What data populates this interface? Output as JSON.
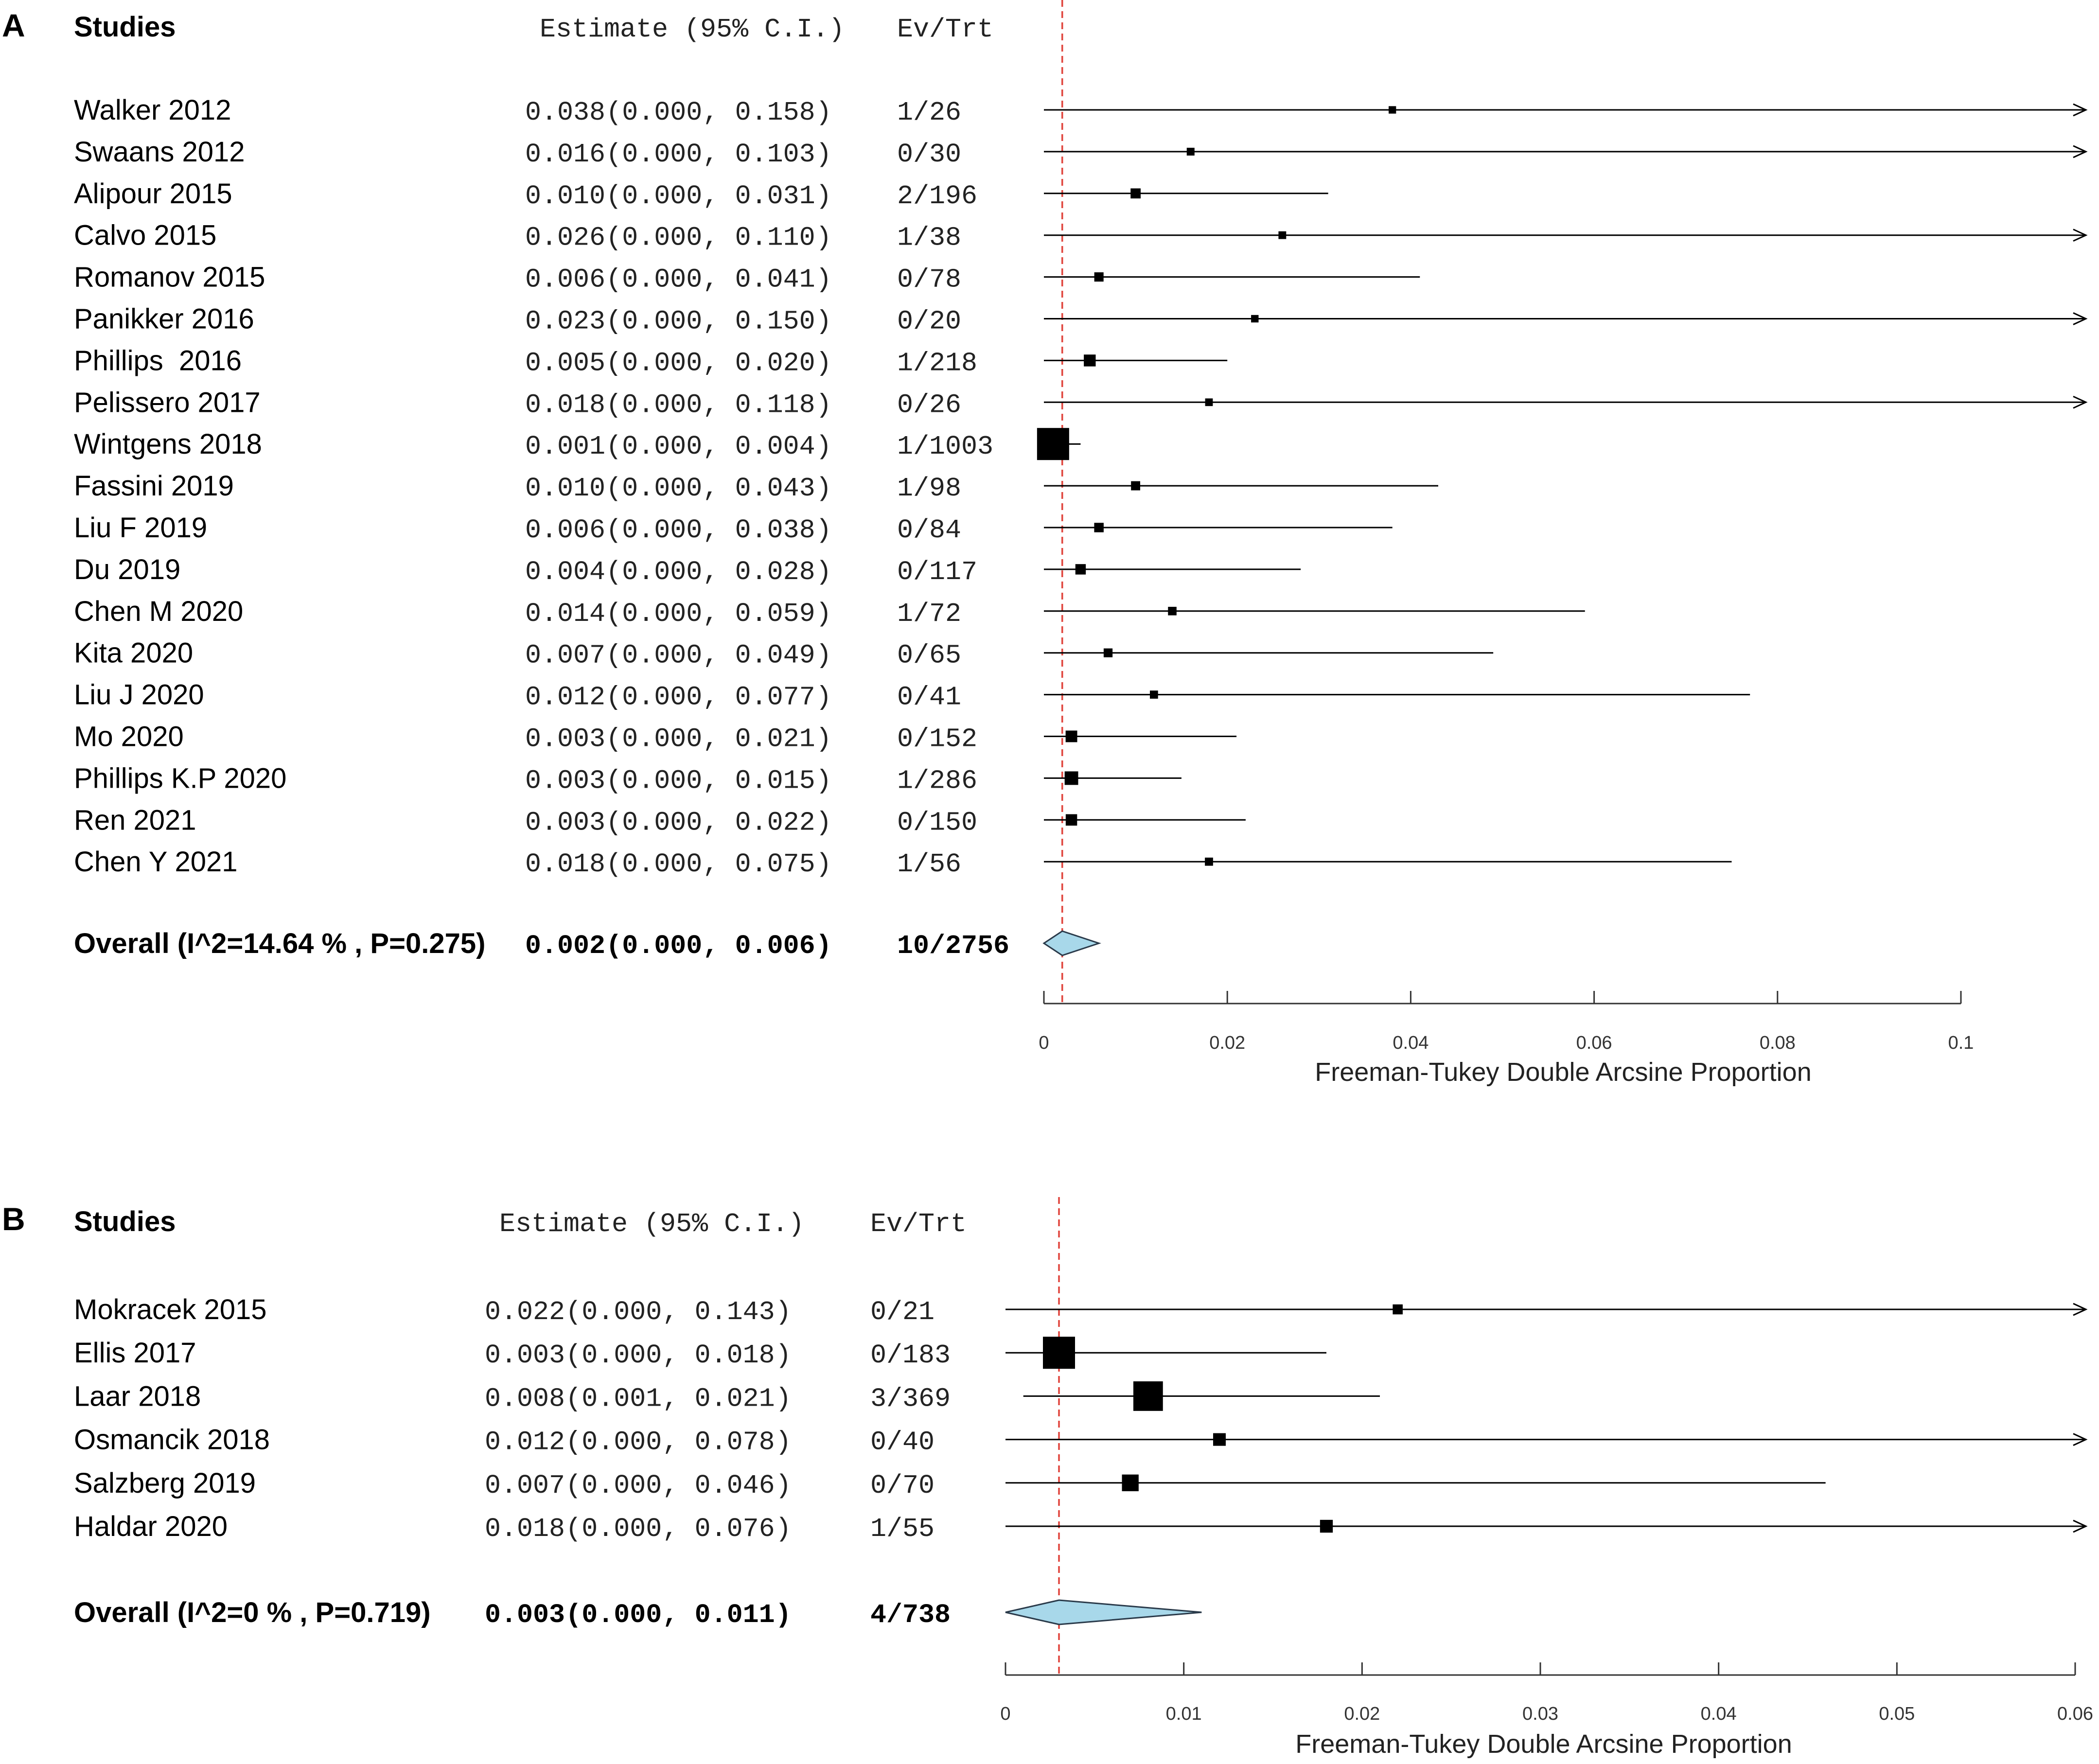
{
  "chart_data": [
    {
      "type": "forest",
      "panel": "A",
      "headers": {
        "studies": "Studies",
        "estimate": "Estimate (95% C.I.)",
        "events": "Ev/Trt"
      },
      "xlabel": "Freeman-Tukey Double Arcsine Proportion",
      "xlim": [
        0,
        0.1
      ],
      "ticks": [
        {
          "value": 0,
          "label": "0"
        },
        {
          "value": 0.02,
          "label": "0.02"
        },
        {
          "value": 0.04,
          "label": "0.04"
        },
        {
          "value": 0.06,
          "label": "0.06"
        },
        {
          "value": 0.08,
          "label": "0.08"
        },
        {
          "value": 0.1,
          "label": "0.1"
        }
      ],
      "reference_line": 0.002,
      "studies": [
        {
          "name": "Walker 2012",
          "est": 0.038,
          "lo": 0.0,
          "hi": 0.158,
          "ev_trt": "1/26",
          "est_text": "0.038",
          "lo_text": "0.000",
          "hi_text": "0.158"
        },
        {
          "name": "Swaans 2012",
          "est": 0.016,
          "lo": 0.0,
          "hi": 0.103,
          "ev_trt": "0/30",
          "est_text": "0.016",
          "lo_text": "0.000",
          "hi_text": "0.103"
        },
        {
          "name": "Alipour 2015",
          "est": 0.01,
          "lo": 0.0,
          "hi": 0.031,
          "ev_trt": "2/196",
          "est_text": "0.010",
          "lo_text": "0.000",
          "hi_text": "0.031"
        },
        {
          "name": "Calvo 2015",
          "est": 0.026,
          "lo": 0.0,
          "hi": 0.11,
          "ev_trt": "1/38",
          "est_text": "0.026",
          "lo_text": "0.000",
          "hi_text": "0.110"
        },
        {
          "name": "Romanov 2015",
          "est": 0.006,
          "lo": 0.0,
          "hi": 0.041,
          "ev_trt": "0/78",
          "est_text": "0.006",
          "lo_text": "0.000",
          "hi_text": "0.041"
        },
        {
          "name": "Panikker 2016",
          "est": 0.023,
          "lo": 0.0,
          "hi": 0.15,
          "ev_trt": "0/20",
          "est_text": "0.023",
          "lo_text": "0.000",
          "hi_text": "0.150"
        },
        {
          "name": "Phillips  2016",
          "est": 0.005,
          "lo": 0.0,
          "hi": 0.02,
          "ev_trt": "1/218",
          "est_text": "0.005",
          "lo_text": "0.000",
          "hi_text": "0.020"
        },
        {
          "name": "Pelissero 2017",
          "est": 0.018,
          "lo": 0.0,
          "hi": 0.118,
          "ev_trt": "0/26",
          "est_text": "0.018",
          "lo_text": "0.000",
          "hi_text": "0.118"
        },
        {
          "name": "Wintgens 2018",
          "est": 0.001,
          "lo": 0.0,
          "hi": 0.004,
          "ev_trt": "1/1003",
          "est_text": "0.001",
          "lo_text": "0.000",
          "hi_text": "0.004"
        },
        {
          "name": "Fassini 2019",
          "est": 0.01,
          "lo": 0.0,
          "hi": 0.043,
          "ev_trt": "1/98",
          "est_text": "0.010",
          "lo_text": "0.000",
          "hi_text": "0.043"
        },
        {
          "name": "Liu F 2019",
          "est": 0.006,
          "lo": 0.0,
          "hi": 0.038,
          "ev_trt": "0/84",
          "est_text": "0.006",
          "lo_text": "0.000",
          "hi_text": "0.038"
        },
        {
          "name": "Du 2019",
          "est": 0.004,
          "lo": 0.0,
          "hi": 0.028,
          "ev_trt": "0/117",
          "est_text": "0.004",
          "lo_text": "0.000",
          "hi_text": "0.028"
        },
        {
          "name": "Chen M 2020",
          "est": 0.014,
          "lo": 0.0,
          "hi": 0.059,
          "ev_trt": "1/72",
          "est_text": "0.014",
          "lo_text": "0.000",
          "hi_text": "0.059"
        },
        {
          "name": "Kita 2020",
          "est": 0.007,
          "lo": 0.0,
          "hi": 0.049,
          "ev_trt": "0/65",
          "est_text": "0.007",
          "lo_text": "0.000",
          "hi_text": "0.049"
        },
        {
          "name": "Liu J 2020",
          "est": 0.012,
          "lo": 0.0,
          "hi": 0.077,
          "ev_trt": "0/41",
          "est_text": "0.012",
          "lo_text": "0.000",
          "hi_text": "0.077"
        },
        {
          "name": "Mo 2020",
          "est": 0.003,
          "lo": 0.0,
          "hi": 0.021,
          "ev_trt": "0/152",
          "est_text": "0.003",
          "lo_text": "0.000",
          "hi_text": "0.021"
        },
        {
          "name": "Phillips K.P 2020",
          "est": 0.003,
          "lo": 0.0,
          "hi": 0.015,
          "ev_trt": "1/286",
          "est_text": "0.003",
          "lo_text": "0.000",
          "hi_text": "0.015"
        },
        {
          "name": "Ren 2021",
          "est": 0.003,
          "lo": 0.0,
          "hi": 0.022,
          "ev_trt": "0/150",
          "est_text": "0.003",
          "lo_text": "0.000",
          "hi_text": "0.022"
        },
        {
          "name": "Chen Y 2021",
          "est": 0.018,
          "lo": 0.0,
          "hi": 0.075,
          "ev_trt": "1/56",
          "est_text": "0.018",
          "lo_text": "0.000",
          "hi_text": "0.075"
        }
      ],
      "overall": {
        "name": "Overall (I^2=14.64 % , P=0.275)",
        "est": 0.002,
        "lo": 0.0,
        "hi": 0.006,
        "ev_trt": "10/2756",
        "est_text": "0.002",
        "lo_text": "0.000",
        "hi_text": "0.006"
      }
    },
    {
      "type": "forest",
      "panel": "B",
      "headers": {
        "studies": "Studies",
        "estimate": "Estimate (95% C.I.)",
        "events": "Ev/Trt"
      },
      "xlabel": "Freeman-Tukey Double Arcsine Proportion",
      "xlim": [
        0,
        0.06
      ],
      "ticks": [
        {
          "value": 0,
          "label": "0"
        },
        {
          "value": 0.01,
          "label": "0.01"
        },
        {
          "value": 0.02,
          "label": "0.02"
        },
        {
          "value": 0.03,
          "label": "0.03"
        },
        {
          "value": 0.04,
          "label": "0.04"
        },
        {
          "value": 0.05,
          "label": "0.05"
        },
        {
          "value": 0.06,
          "label": "0.06"
        }
      ],
      "reference_line": 0.003,
      "studies": [
        {
          "name": "Mokracek 2015",
          "est": 0.022,
          "lo": 0.0,
          "hi": 0.143,
          "ev_trt": "0/21",
          "est_text": "0.022",
          "lo_text": "0.000",
          "hi_text": "0.143"
        },
        {
          "name": "Ellis 2017",
          "est": 0.003,
          "lo": 0.0,
          "hi": 0.018,
          "ev_trt": "0/183",
          "est_text": "0.003",
          "lo_text": "0.000",
          "hi_text": "0.018"
        },
        {
          "name": "Laar 2018",
          "est": 0.008,
          "lo": 0.001,
          "hi": 0.021,
          "ev_trt": "3/369",
          "est_text": "0.008",
          "lo_text": "0.001",
          "hi_text": "0.021"
        },
        {
          "name": "Osmancik 2018",
          "est": 0.012,
          "lo": 0.0,
          "hi": 0.078,
          "ev_trt": "0/40",
          "est_text": "0.012",
          "lo_text": "0.000",
          "hi_text": "0.078"
        },
        {
          "name": "Salzberg 2019",
          "est": 0.007,
          "lo": 0.0,
          "hi": 0.046,
          "ev_trt": "0/70",
          "est_text": "0.007",
          "lo_text": "0.000",
          "hi_text": "0.046"
        },
        {
          "name": "Haldar 2020",
          "est": 0.018,
          "lo": 0.0,
          "hi": 0.076,
          "ev_trt": "1/55",
          "est_text": "0.018",
          "lo_text": "0.000",
          "hi_text": "0.076"
        }
      ],
      "overall": {
        "name": "Overall (I^2=0 % , P=0.719)",
        "est": 0.003,
        "lo": 0.0,
        "hi": 0.011,
        "ev_trt": "4/738",
        "est_text": "0.003",
        "lo_text": "0.000",
        "hi_text": "0.011"
      }
    }
  ],
  "colors": {
    "reference_line": "#e0443c",
    "diamond_fill": "#a8d8ea",
    "diamond_stroke": "#2a3a4a",
    "ink": "#000000",
    "axis": "#333333"
  }
}
